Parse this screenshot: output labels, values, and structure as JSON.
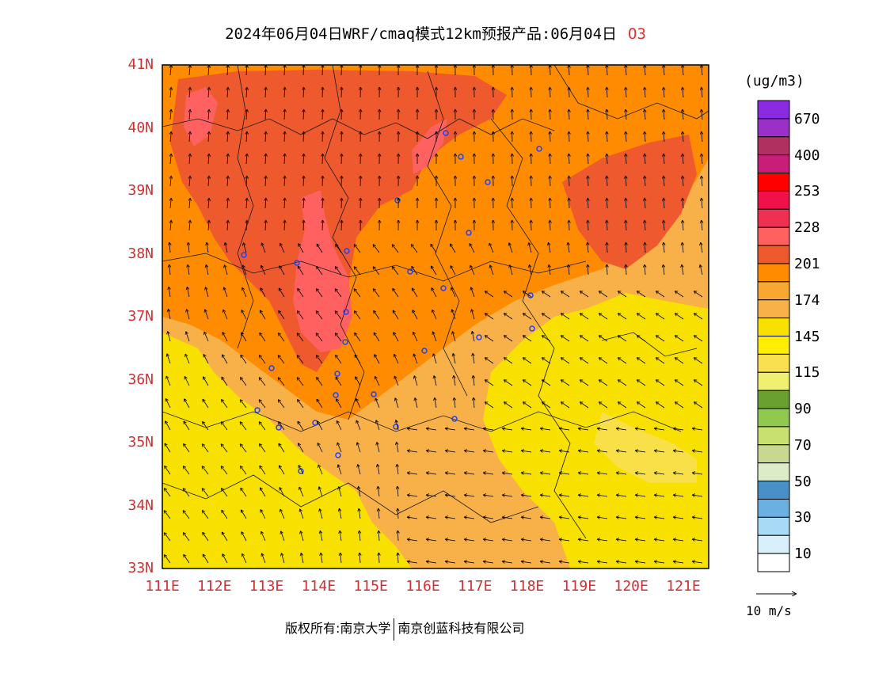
{
  "title": {
    "text": "2024年06月04日WRF/cmaq模式12km预报产品:06月04日",
    "species": "O3"
  },
  "map": {
    "lat_labels": [
      "41N",
      "40N",
      "39N",
      "38N",
      "37N",
      "36N",
      "35N",
      "34N",
      "33N"
    ],
    "lon_labels": [
      "111E",
      "112E",
      "113E",
      "114E",
      "115E",
      "116E",
      "117E",
      "118E",
      "119E",
      "120E",
      "121E"
    ]
  },
  "colorbar": {
    "units": "(ug/m3)",
    "colors": [
      "#8a2be2",
      "#9b30c8",
      "#b03060",
      "#c81e78",
      "#ff0000",
      "#f0104a",
      "#f03050",
      "#ff6060",
      "#ee5a2d",
      "#ff8c00",
      "#f8a830",
      "#f8b048",
      "#f8e000",
      "#ffee00",
      "#f8e050",
      "#f0f070",
      "#6aa030",
      "#90c850",
      "#c8e070",
      "#c8d890",
      "#dcebc8",
      "#4a90c8",
      "#6ab0e0",
      "#a8daf5",
      "#d8f0fa",
      "#ffffff"
    ],
    "labels": [
      "670",
      "400",
      "253",
      "228",
      "201",
      "174",
      "145",
      "115",
      "90",
      "70",
      "50",
      "30",
      "10"
    ]
  },
  "wind_reference": {
    "label": "10 m/s"
  },
  "copyright": {
    "owner": "版权所有:南京大学",
    "company": "南京创蓝科技有限公司"
  }
}
